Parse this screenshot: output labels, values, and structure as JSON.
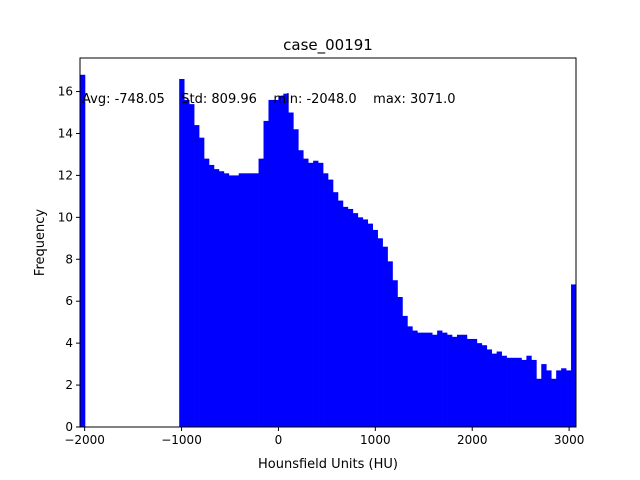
{
  "chart_data": {
    "type": "bar",
    "title": "case_00191",
    "xlabel": "Hounsfield Units (HU)",
    "ylabel": "Frequency",
    "xlim": [
      -2048,
      3071
    ],
    "ylim": [
      0,
      17.6
    ],
    "bar_color": "#0000ff",
    "bin_count": 100,
    "x_ticks": [
      -2000,
      -1000,
      0,
      1000,
      2000,
      3000
    ],
    "x_tick_labels": [
      "−2000",
      "−1000",
      "0",
      "1000",
      "2000",
      "3000"
    ],
    "y_ticks": [
      0,
      2,
      4,
      6,
      8,
      10,
      12,
      14,
      16
    ],
    "y_tick_labels": [
      "0",
      "2",
      "4",
      "6",
      "8",
      "10",
      "12",
      "14",
      "16"
    ],
    "annotation": "Avg: -748.05    Std: 809.96    min: -2048.0    max: 3071.0",
    "values": [
      16.8,
      0,
      0,
      0,
      0,
      0,
      0,
      0,
      0,
      0,
      0,
      0,
      0,
      0,
      0,
      0,
      0,
      0,
      0,
      0,
      16.6,
      15.6,
      15.4,
      14.4,
      13.8,
      12.8,
      12.5,
      12.3,
      12.2,
      12.1,
      12.0,
      12.0,
      12.1,
      12.1,
      12.1,
      12.1,
      12.8,
      14.6,
      15.6,
      15.6,
      15.8,
      15.9,
      15.0,
      14.2,
      13.2,
      12.8,
      12.6,
      12.7,
      12.6,
      12.1,
      11.8,
      11.2,
      10.8,
      10.5,
      10.4,
      10.2,
      10.0,
      9.9,
      9.7,
      9.4,
      9.0,
      8.6,
      7.9,
      7.0,
      6.2,
      5.3,
      4.8,
      4.6,
      4.5,
      4.5,
      4.5,
      4.4,
      4.6,
      4.5,
      4.4,
      4.3,
      4.4,
      4.4,
      4.2,
      4.2,
      4.0,
      3.9,
      3.7,
      3.5,
      3.6,
      3.4,
      3.3,
      3.3,
      3.3,
      3.2,
      3.4,
      3.2,
      2.3,
      3.0,
      2.7,
      2.3,
      2.7,
      2.8,
      2.7,
      6.8
    ]
  }
}
